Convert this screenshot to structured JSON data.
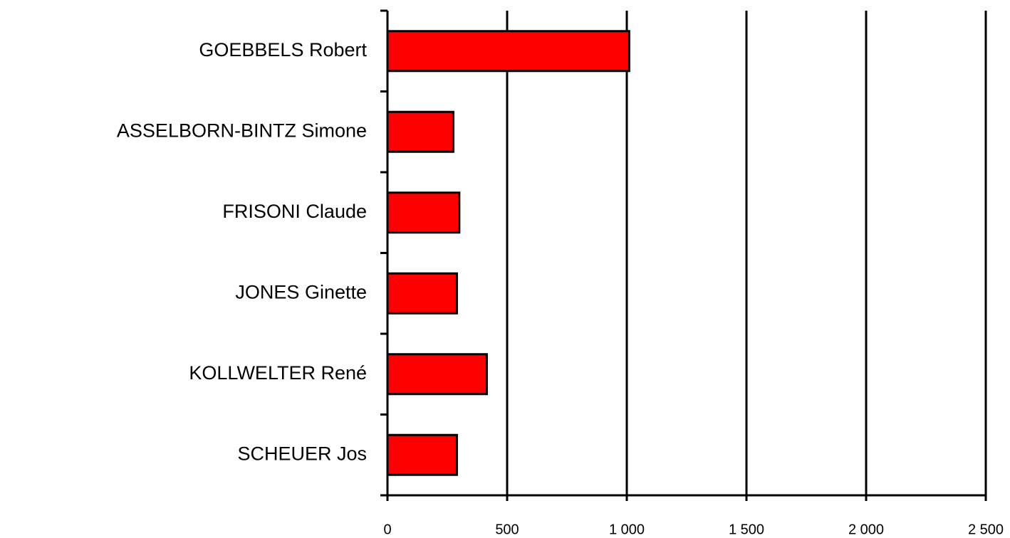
{
  "chart_data": {
    "type": "barh",
    "categories": [
      "GOEBBELS Robert",
      "ASSELBORN-BINTZ Simone",
      "FRISONI Claude",
      "JONES Ginette",
      "KOLLWELTER René",
      "SCHEUER Jos"
    ],
    "values": [
      1010,
      275,
      300,
      290,
      415,
      290
    ],
    "color": "#ff0000",
    "xlim": [
      0,
      2500
    ],
    "xticks": [
      0,
      500,
      {
        "value": 1000,
        "label": "1 000"
      },
      {
        "value": 1500,
        "label": "1 500"
      },
      {
        "value": 2000,
        "label": "2 000"
      },
      {
        "value": 2500,
        "label": "2 500"
      }
    ],
    "grid": true
  }
}
